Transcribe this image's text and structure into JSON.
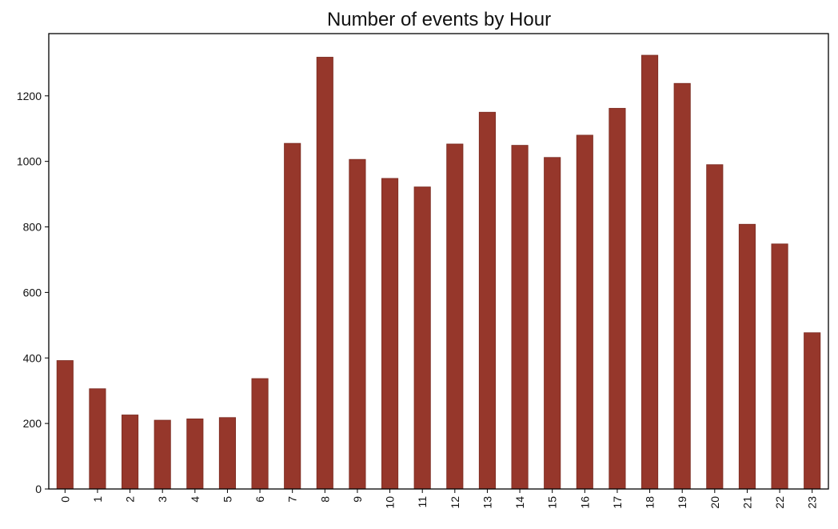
{
  "chart_data": {
    "type": "bar",
    "title": "Number of events by Hour",
    "xlabel": "",
    "ylabel": "",
    "categories": [
      "0",
      "1",
      "2",
      "3",
      "4",
      "5",
      "6",
      "7",
      "8",
      "9",
      "10",
      "11",
      "12",
      "13",
      "14",
      "15",
      "16",
      "17",
      "18",
      "19",
      "20",
      "21",
      "22",
      "23"
    ],
    "values": [
      392,
      306,
      226,
      210,
      214,
      218,
      337,
      1055,
      1318,
      1006,
      948,
      922,
      1053,
      1150,
      1049,
      1012,
      1080,
      1162,
      1324,
      1238,
      990,
      808,
      748,
      477
    ],
    "ylim": [
      0,
      1390
    ],
    "yticks": [
      0,
      200,
      400,
      600,
      800,
      1000,
      1200
    ],
    "xtick_rotation": "vertical",
    "grid": false,
    "legend": "none",
    "bar_color": "#96372b",
    "bar_edge_color": "#7a2a20"
  }
}
